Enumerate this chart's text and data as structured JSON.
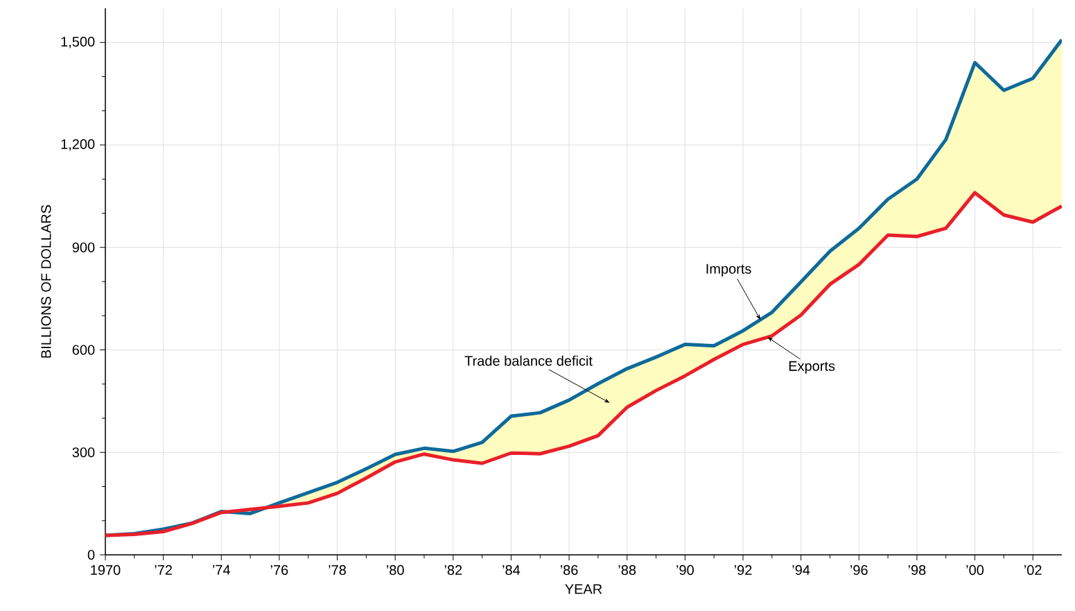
{
  "chart_data": {
    "type": "line",
    "xlabel": "YEAR",
    "ylabel": "BILLIONS OF DOLLARS",
    "x": [
      1970,
      1971,
      1972,
      1973,
      1974,
      1975,
      1976,
      1977,
      1978,
      1979,
      1980,
      1981,
      1982,
      1983,
      1984,
      1985,
      1986,
      1987,
      1988,
      1989,
      1990,
      1991,
      1992,
      1993,
      1994,
      1995,
      1996,
      1997,
      1998,
      1999,
      2000,
      2001,
      2002,
      2003
    ],
    "series": [
      {
        "name": "Imports",
        "color": "#0e6a9a",
        "values": [
          57,
          62,
          75,
          93,
          127,
          121,
          152,
          182,
          212,
          252,
          294,
          312,
          303,
          329,
          406,
          416,
          453,
          501,
          545,
          579,
          616,
          612,
          656,
          710,
          799,
          889,
          956,
          1041,
          1100,
          1216,
          1441,
          1360,
          1395,
          1508
        ]
      },
      {
        "name": "Exports",
        "color": "#e8202a",
        "values": [
          57,
          60,
          68,
          92,
          124,
          133,
          142,
          152,
          180,
          225,
          272,
          295,
          278,
          268,
          298,
          296,
          318,
          349,
          432,
          481,
          524,
          572,
          616,
          641,
          702,
          792,
          850,
          936,
          932,
          956,
          1060,
          995,
          974,
          1021
        ]
      }
    ],
    "xlim": [
      1970,
      2003
    ],
    "ylim": [
      0,
      1600
    ],
    "xticks": [
      1970,
      {
        "value": 1972,
        "label": "’72"
      },
      {
        "value": 1974,
        "label": "’74"
      },
      {
        "value": 1976,
        "label": "’76"
      },
      {
        "value": 1978,
        "label": "’78"
      },
      {
        "value": 1980,
        "label": "’80"
      },
      {
        "value": 1982,
        "label": "’82"
      },
      {
        "value": 1984,
        "label": "’84"
      },
      {
        "value": 1986,
        "label": "’86"
      },
      {
        "value": 1988,
        "label": "’88"
      },
      {
        "value": 1990,
        "label": "’90"
      },
      {
        "value": 1992,
        "label": "’92"
      },
      {
        "value": 1994,
        "label": "’94"
      },
      {
        "value": 1996,
        "label": "’96"
      },
      {
        "value": 1998,
        "label": "’98"
      },
      {
        "value": 2000,
        "label": "’00"
      },
      {
        "value": 2002,
        "label": "’02"
      }
    ],
    "yticks": [
      0,
      300,
      600,
      900,
      {
        "value": 1200,
        "label": "1,200"
      },
      {
        "value": 1500,
        "label": "1,500"
      }
    ],
    "grid": true,
    "legend": false,
    "marker": "none",
    "line_style": "solid",
    "annotations": [
      "Trade balance deficit"
    ]
  }
}
